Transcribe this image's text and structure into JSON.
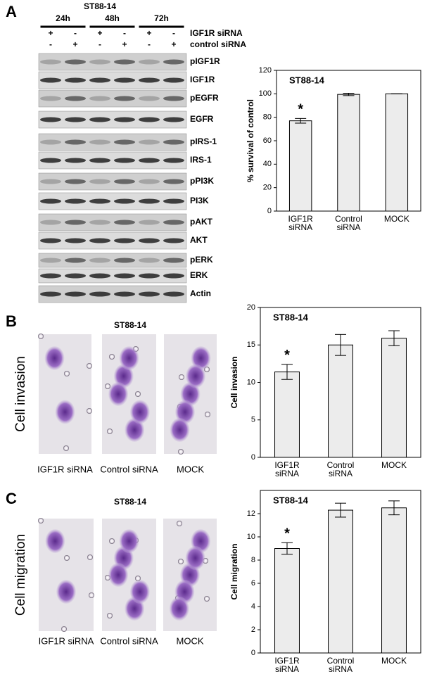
{
  "panel_labels": [
    "A",
    "B",
    "C"
  ],
  "western_blot": {
    "title": "ST88-14",
    "timepoints": [
      "24h",
      "48h",
      "72h"
    ],
    "conditions": [
      {
        "name": "IGF1R siRNA",
        "signs": [
          "+",
          "-",
          "+",
          "-",
          "+",
          "-"
        ]
      },
      {
        "name": "control siRNA",
        "signs": [
          "-",
          "+",
          "-",
          "+",
          "-",
          "+"
        ]
      }
    ],
    "rows": [
      "pIGF1R",
      "IGF1R",
      "pEGFR",
      "EGFR",
      "pIRS-1",
      "IRS-1",
      "pPI3K",
      "PI3K",
      "pAKT",
      "AKT",
      "pERK",
      "ERK",
      "Actin"
    ]
  },
  "micrographs": [
    {
      "title": "ST88-14",
      "side_label": "Cell invasion",
      "labels": [
        "IGF1R siRNA",
        "Control siRNA",
        "MOCK"
      ]
    },
    {
      "title": "ST88-14",
      "side_label": "Cell migration",
      "labels": [
        "IGF1R siRNA",
        "Control siRNA",
        "MOCK"
      ]
    }
  ],
  "chart_data": [
    {
      "type": "bar",
      "title": "ST88-14",
      "y_label": "% survival of control",
      "categories": [
        "IGF1R siRNA",
        "Control siRNA",
        "MOCK"
      ],
      "values": [
        77,
        99.5,
        100
      ],
      "errors": [
        2,
        1,
        0
      ],
      "annotations": [
        "*",
        null,
        null
      ],
      "color": "#ececec",
      "ylim": [
        0,
        120
      ],
      "yticks": [
        0,
        20,
        40,
        60,
        80,
        100,
        120
      ]
    },
    {
      "type": "bar",
      "title": "ST88-14",
      "y_label": "Cell invasion",
      "categories": [
        "IGF1R siRNA",
        "Control siRNA",
        "MOCK"
      ],
      "values": [
        11.4,
        15,
        15.9
      ],
      "errors": [
        1,
        1.4,
        1
      ],
      "annotations": [
        "*",
        null,
        null
      ],
      "color": "#ececec",
      "ylim": [
        0,
        20
      ],
      "yticks": [
        0,
        5,
        10,
        15,
        20
      ]
    },
    {
      "type": "bar",
      "title": "ST88-14",
      "y_label": "Cell migration",
      "categories": [
        "IGF1R siRNA",
        "Control siRNA",
        "MOCK"
      ],
      "values": [
        9,
        12.3,
        12.5
      ],
      "errors": [
        0.5,
        0.6,
        0.6
      ],
      "annotations": [
        "*",
        null,
        null
      ],
      "color": "#ececec",
      "ylim": [
        0,
        14
      ],
      "yticks": [
        0,
        2,
        4,
        6,
        8,
        10,
        12
      ]
    }
  ]
}
